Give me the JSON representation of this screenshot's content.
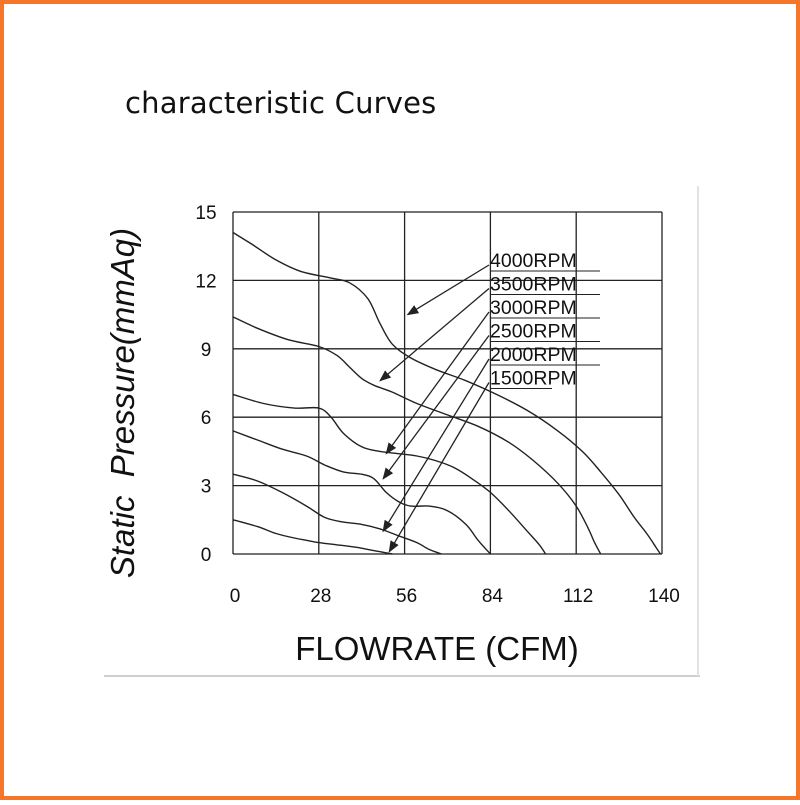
{
  "page": {
    "title": "characteristic Curves",
    "frame_color": "#f4772a"
  },
  "chart_data": {
    "type": "line",
    "title": "",
    "xlabel": "FLOWRATE (CFM)",
    "ylabel": "Static  Pressure(mmAq)",
    "xlim": [
      0,
      140
    ],
    "ylim": [
      0,
      15
    ],
    "xticks": [
      0,
      28,
      56,
      84,
      112,
      140
    ],
    "yticks": [
      0,
      3,
      6,
      9,
      12,
      15
    ],
    "grid": true,
    "line_color": "#222222",
    "series": [
      {
        "name": "4000RPM",
        "x": [
          0,
          6,
          14,
          22,
          32,
          38,
          44,
          48,
          52,
          58,
          66,
          76,
          86,
          96,
          106,
          114,
          120,
          126,
          131,
          135,
          138,
          139.5
        ],
        "y": [
          14.1,
          13.6,
          12.9,
          12.4,
          12.1,
          11.9,
          11.2,
          10.1,
          9.2,
          8.6,
          8.1,
          7.6,
          7.0,
          6.3,
          5.4,
          4.5,
          3.6,
          2.6,
          1.6,
          0.9,
          0.3,
          0
        ]
      },
      {
        "name": "3500RPM",
        "x": [
          0,
          8,
          18,
          28,
          34,
          38,
          42,
          46,
          52,
          60,
          70,
          80,
          90,
          98,
          106,
          112,
          116,
          118,
          120
        ],
        "y": [
          10.4,
          9.9,
          9.4,
          9.1,
          8.7,
          8.2,
          7.7,
          7.4,
          7.1,
          6.6,
          6.1,
          5.6,
          4.9,
          4.1,
          3.1,
          2.1,
          1.1,
          0.5,
          0
        ]
      },
      {
        "name": "3000RPM",
        "x": [
          0,
          10,
          20,
          28,
          32,
          36,
          42,
          48,
          54,
          60,
          66,
          72,
          78,
          84,
          90,
          96,
          100,
          102
        ],
        "y": [
          7.0,
          6.6,
          6.4,
          6.4,
          6.0,
          5.3,
          4.7,
          4.5,
          4.4,
          4.3,
          4.1,
          3.8,
          3.3,
          2.7,
          1.9,
          1.0,
          0.4,
          0
        ]
      },
      {
        "name": "2500RPM",
        "x": [
          0,
          8,
          16,
          24,
          30,
          36,
          42,
          46,
          50,
          54,
          58,
          64,
          70,
          76,
          80,
          84
        ],
        "y": [
          5.4,
          5.0,
          4.6,
          4.3,
          3.9,
          3.6,
          3.5,
          3.3,
          2.7,
          2.3,
          2.1,
          2.1,
          1.9,
          1.3,
          0.6,
          0
        ]
      },
      {
        "name": "2000RPM",
        "x": [
          0,
          8,
          16,
          24,
          30,
          36,
          42,
          48,
          54,
          60,
          64,
          68
        ],
        "y": [
          3.5,
          3.2,
          2.7,
          2.1,
          1.6,
          1.4,
          1.3,
          1.1,
          0.8,
          0.5,
          0.2,
          0
        ]
      },
      {
        "name": "1500RPM",
        "x": [
          0,
          8,
          14,
          20,
          24,
          28,
          34,
          40,
          44,
          48,
          52
        ],
        "y": [
          1.5,
          1.2,
          0.9,
          0.7,
          0.6,
          0.5,
          0.4,
          0.3,
          0.2,
          0.1,
          0
        ]
      }
    ],
    "arrow_targets": [
      {
        "series": "4000RPM",
        "x": 57,
        "y": 10.5
      },
      {
        "series": "3500RPM",
        "x": 48,
        "y": 7.6
      },
      {
        "series": "3000RPM",
        "x": 50,
        "y": 4.4
      },
      {
        "series": "2500RPM",
        "x": 49,
        "y": 3.3
      },
      {
        "series": "2000RPM",
        "x": 49,
        "y": 1.0
      },
      {
        "series": "1500RPM",
        "x": 51,
        "y": 0.1
      }
    ]
  }
}
